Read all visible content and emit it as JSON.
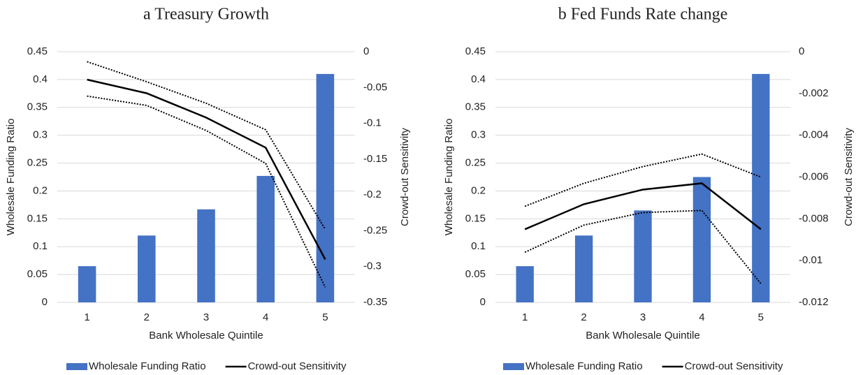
{
  "chart_data": [
    {
      "type": "combo",
      "title": "a Treasury Growth",
      "xlabel": "Bank Wholesale Quintile",
      "ylabel": "Wholesale Funding Ratio",
      "y2label": "Crowd-out Sensitivity",
      "categories": [
        "1",
        "2",
        "3",
        "4",
        "5"
      ],
      "ylim": [
        0,
        0.45
      ],
      "yticks": [
        0,
        0.05,
        0.1,
        0.15,
        0.2,
        0.25,
        0.3,
        0.35,
        0.4,
        0.45
      ],
      "y2lim": [
        -0.35,
        0
      ],
      "y2ticks": [
        -0.35,
        -0.3,
        -0.25,
        -0.2,
        -0.15,
        -0.1,
        -0.05,
        0
      ],
      "grid": true,
      "series": [
        {
          "name": "Wholesale Funding Ratio",
          "kind": "bar",
          "color": "#4472c4",
          "values": [
            0.065,
            0.12,
            0.167,
            0.227,
            0.41
          ]
        },
        {
          "name": "Crowd-out Sensitivity",
          "kind": "line",
          "axis": "y2",
          "color": "#000000",
          "values": [
            -0.039,
            -0.058,
            -0.092,
            -0.134,
            -0.29
          ]
        },
        {
          "kind": "line",
          "style": "dotted",
          "axis": "y2",
          "color": "#000000",
          "values": [
            -0.014,
            -0.042,
            -0.072,
            -0.109,
            -0.248
          ]
        },
        {
          "kind": "line",
          "style": "dotted",
          "axis": "y2",
          "color": "#000000",
          "values": [
            -0.062,
            -0.075,
            -0.11,
            -0.156,
            -0.329
          ]
        }
      ]
    },
    {
      "type": "combo",
      "title": "b Fed Funds Rate change",
      "xlabel": "Bank Wholesale Quintile",
      "ylabel": "Wholesale Funding Ratio",
      "y2label": "Crowd-out Sensitivity",
      "categories": [
        "1",
        "2",
        "3",
        "4",
        "5"
      ],
      "ylim": [
        0,
        0.45
      ],
      "yticks": [
        0,
        0.05,
        0.1,
        0.15,
        0.2,
        0.25,
        0.3,
        0.35,
        0.4,
        0.45
      ],
      "y2lim": [
        -0.012,
        0
      ],
      "y2ticks": [
        -0.012,
        -0.01,
        -0.008,
        -0.006,
        -0.004,
        -0.002,
        0
      ],
      "grid": true,
      "series": [
        {
          "name": "Wholesale Funding Ratio",
          "kind": "bar",
          "color": "#4472c4",
          "values": [
            0.065,
            0.12,
            0.165,
            0.225,
            0.41
          ]
        },
        {
          "name": "Crowd-out Sensitivity",
          "kind": "line",
          "axis": "y2",
          "color": "#000000",
          "values": [
            -0.0085,
            -0.0073,
            -0.0066,
            -0.0063,
            -0.0085
          ]
        },
        {
          "kind": "line",
          "style": "dotted",
          "axis": "y2",
          "color": "#000000",
          "values": [
            -0.0074,
            -0.0063,
            -0.0055,
            -0.0049,
            -0.006
          ]
        },
        {
          "kind": "line",
          "style": "dotted",
          "axis": "y2",
          "color": "#000000",
          "values": [
            -0.0096,
            -0.0083,
            -0.0077,
            -0.0076,
            -0.0111
          ]
        }
      ]
    }
  ]
}
